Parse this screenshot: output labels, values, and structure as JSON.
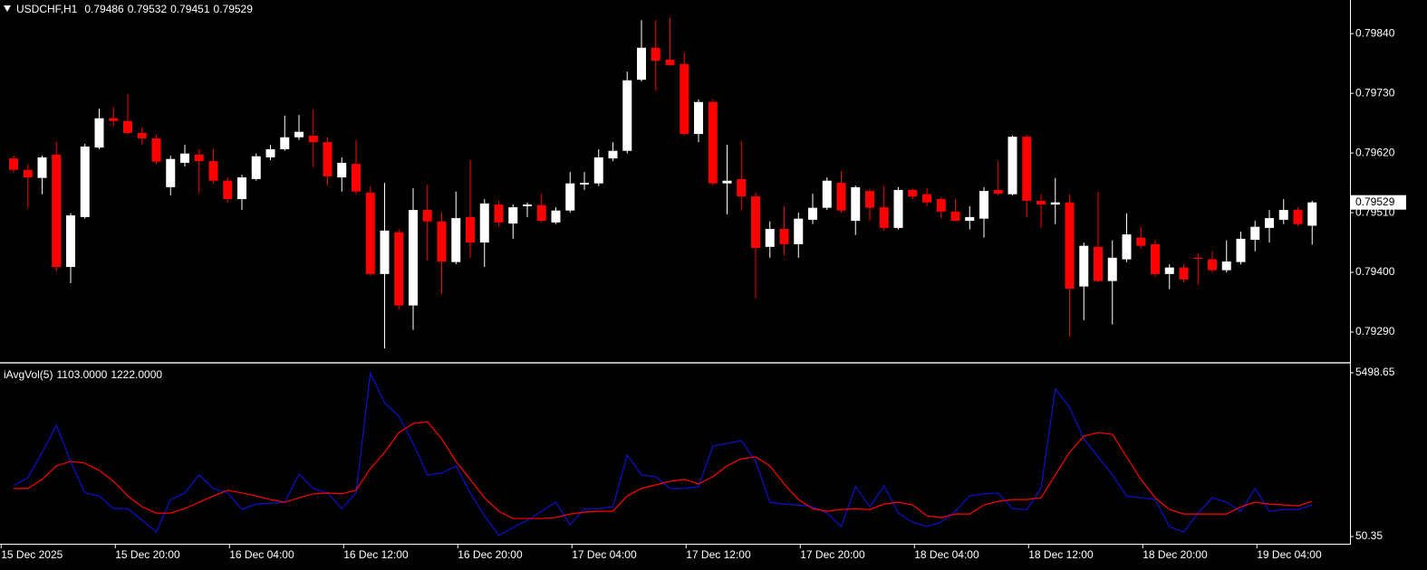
{
  "chart_data": [
    {
      "type": "candlestick",
      "symbol": "USDCHF,H1",
      "up_color": "#ffffff",
      "down_color": "#ff0000",
      "ylim": [
        0.79235,
        0.79902
      ],
      "yticks": [
        {
          "value": 0.7984,
          "label": "0.79840"
        },
        {
          "value": 0.7973,
          "label": "0.79730"
        },
        {
          "value": 0.7962,
          "label": "0.79620"
        },
        {
          "value": 0.7951,
          "label": "0.79510"
        },
        {
          "value": 0.794,
          "label": "0.79400"
        },
        {
          "value": 0.7929,
          "label": "0.79290"
        }
      ],
      "candles": [
        [
          0.7961,
          0.79615,
          0.79585,
          0.79589
        ],
        [
          0.79589,
          0.79599,
          0.79519,
          0.79575
        ],
        [
          0.79574,
          0.79615,
          0.79544,
          0.79612
        ],
        [
          0.79617,
          0.7964,
          0.79402,
          0.7941
        ],
        [
          0.7941,
          0.79509,
          0.7938,
          0.79505
        ],
        [
          0.79502,
          0.79637,
          0.79499,
          0.79632
        ],
        [
          0.7963,
          0.79702,
          0.79627,
          0.79684
        ],
        [
          0.79684,
          0.79705,
          0.79669,
          0.79679
        ],
        [
          0.79679,
          0.79729,
          0.79654,
          0.79657
        ],
        [
          0.79657,
          0.79667,
          0.79635,
          0.79647
        ],
        [
          0.79647,
          0.79652,
          0.796,
          0.79604
        ],
        [
          0.79557,
          0.79615,
          0.79542,
          0.79609
        ],
        [
          0.79602,
          0.79635,
          0.79595,
          0.79619
        ],
        [
          0.79617,
          0.79627,
          0.79547,
          0.79605
        ],
        [
          0.79605,
          0.79627,
          0.79565,
          0.79569
        ],
        [
          0.79569,
          0.79575,
          0.79529,
          0.79535
        ],
        [
          0.79535,
          0.7958,
          0.79515,
          0.79575
        ],
        [
          0.79572,
          0.79619,
          0.79569,
          0.79614
        ],
        [
          0.79612,
          0.79635,
          0.79607,
          0.79627
        ],
        [
          0.79627,
          0.79689,
          0.79624,
          0.79649
        ],
        [
          0.79649,
          0.7969,
          0.79644,
          0.79659
        ],
        [
          0.79652,
          0.797,
          0.79594,
          0.7964
        ],
        [
          0.7964,
          0.79649,
          0.7956,
          0.79577
        ],
        [
          0.79575,
          0.79612,
          0.79549,
          0.79602
        ],
        [
          0.796,
          0.79644,
          0.79545,
          0.79549
        ],
        [
          0.79547,
          0.79559,
          0.79394,
          0.79397
        ],
        [
          0.79397,
          0.79565,
          0.7926,
          0.79477
        ],
        [
          0.79474,
          0.7948,
          0.79332,
          0.79339
        ],
        [
          0.79339,
          0.79555,
          0.79294,
          0.79515
        ],
        [
          0.79515,
          0.79562,
          0.79422,
          0.79494
        ],
        [
          0.79494,
          0.7951,
          0.7936,
          0.7942
        ],
        [
          0.79419,
          0.79549,
          0.79415,
          0.795
        ],
        [
          0.79502,
          0.79607,
          0.79427,
          0.79455
        ],
        [
          0.79455,
          0.79535,
          0.7941,
          0.79527
        ],
        [
          0.79525,
          0.79532,
          0.79485,
          0.79492
        ],
        [
          0.7949,
          0.79525,
          0.79462,
          0.7952
        ],
        [
          0.79522,
          0.79529,
          0.79502,
          0.79525
        ],
        [
          0.79524,
          0.79545,
          0.79492,
          0.79495
        ],
        [
          0.79492,
          0.7952,
          0.79489,
          0.79514
        ],
        [
          0.79514,
          0.79585,
          0.7951,
          0.79564
        ],
        [
          0.79562,
          0.79585,
          0.79552,
          0.79565
        ],
        [
          0.79564,
          0.79627,
          0.79559,
          0.79612
        ],
        [
          0.7961,
          0.7964,
          0.79605,
          0.79624
        ],
        [
          0.79624,
          0.7977,
          0.79619,
          0.79754
        ],
        [
          0.79755,
          0.79865,
          0.79752,
          0.79814
        ],
        [
          0.79814,
          0.79865,
          0.79735,
          0.7979
        ],
        [
          0.79792,
          0.7987,
          0.7978,
          0.79782
        ],
        [
          0.79784,
          0.79805,
          0.79652,
          0.79655
        ],
        [
          0.79655,
          0.79719,
          0.7964,
          0.79714
        ],
        [
          0.79714,
          0.79719,
          0.7956,
          0.79564
        ],
        [
          0.79564,
          0.79635,
          0.79507,
          0.79569
        ],
        [
          0.79572,
          0.79642,
          0.79514,
          0.7954
        ],
        [
          0.7954,
          0.79547,
          0.79352,
          0.79445
        ],
        [
          0.79447,
          0.79494,
          0.79427,
          0.7948
        ],
        [
          0.7948,
          0.79522,
          0.79432,
          0.79452
        ],
        [
          0.79452,
          0.7951,
          0.79427,
          0.79499
        ],
        [
          0.79497,
          0.79545,
          0.79489,
          0.79519
        ],
        [
          0.79519,
          0.79575,
          0.79515,
          0.79569
        ],
        [
          0.79565,
          0.79587,
          0.7951,
          0.79514
        ],
        [
          0.79495,
          0.7956,
          0.79469,
          0.79557
        ],
        [
          0.7955,
          0.79554,
          0.79494,
          0.79519
        ],
        [
          0.7952,
          0.7956,
          0.79477,
          0.79482
        ],
        [
          0.79482,
          0.79557,
          0.79479,
          0.79552
        ],
        [
          0.79552,
          0.79554,
          0.79535,
          0.7954
        ],
        [
          0.79544,
          0.79555,
          0.79522,
          0.79529
        ],
        [
          0.79535,
          0.79539,
          0.79499,
          0.79512
        ],
        [
          0.79512,
          0.79535,
          0.79494,
          0.79495
        ],
        [
          0.79495,
          0.79522,
          0.79479,
          0.79502
        ],
        [
          0.79499,
          0.79557,
          0.79464,
          0.7955
        ],
        [
          0.79552,
          0.79605,
          0.79542,
          0.79545
        ],
        [
          0.79544,
          0.79652,
          0.79542,
          0.7965
        ],
        [
          0.7965,
          0.79654,
          0.79502,
          0.79532
        ],
        [
          0.79532,
          0.79544,
          0.79482,
          0.79525
        ],
        [
          0.79525,
          0.79574,
          0.79489,
          0.79529
        ],
        [
          0.79529,
          0.79544,
          0.79282,
          0.7937
        ],
        [
          0.79374,
          0.79455,
          0.79312,
          0.79449
        ],
        [
          0.79447,
          0.79549,
          0.79382,
          0.79384
        ],
        [
          0.79384,
          0.79459,
          0.79304,
          0.79427
        ],
        [
          0.79424,
          0.79509,
          0.79419,
          0.7947
        ],
        [
          0.79464,
          0.79484,
          0.79444,
          0.79449
        ],
        [
          0.79452,
          0.7946,
          0.79392,
          0.79397
        ],
        [
          0.79397,
          0.79415,
          0.79369,
          0.79409
        ],
        [
          0.79409,
          0.79414,
          0.79382,
          0.79387
        ],
        [
          0.79427,
          0.79435,
          0.79377,
          0.79425
        ],
        [
          0.79424,
          0.79439,
          0.794,
          0.79404
        ],
        [
          0.79404,
          0.79459,
          0.794,
          0.7942
        ],
        [
          0.79419,
          0.79475,
          0.79415,
          0.79462
        ],
        [
          0.7946,
          0.79495,
          0.79439,
          0.79484
        ],
        [
          0.79482,
          0.79515,
          0.79455,
          0.795
        ],
        [
          0.79497,
          0.79535,
          0.79489,
          0.79515
        ],
        [
          0.79515,
          0.7952,
          0.79485,
          0.79489
        ],
        [
          0.79486,
          0.79532,
          0.79451,
          0.79529
        ]
      ]
    },
    {
      "type": "line",
      "title": "iAvgVol(5)",
      "value_labels": [
        "1103.0000",
        "1222.0000"
      ],
      "ylim": [
        50.35,
        5498.65
      ],
      "yticks": [
        5498.65,
        50.35
      ],
      "xticks": [
        {
          "value": -1,
          "label": "15 Dec 2025"
        },
        {
          "value": 7,
          "label": "15 Dec 20:00"
        },
        {
          "value": 15,
          "label": "16 Dec 04:00"
        },
        {
          "value": 23,
          "label": "16 Dec 12:00"
        },
        {
          "value": 31,
          "label": "16 Dec 20:00"
        },
        {
          "value": 39,
          "label": "17 Dec 04:00"
        },
        {
          "value": 47,
          "label": "17 Dec 12:00"
        },
        {
          "value": 55,
          "label": "17 Dec 20:00"
        },
        {
          "value": 63,
          "label": "18 Dec 04:00"
        },
        {
          "value": 71,
          "label": "18 Dec 12:00"
        },
        {
          "value": 79,
          "label": "18 Dec 20:00"
        },
        {
          "value": 87,
          "label": "19 Dec 04:00"
        }
      ],
      "series": [
        {
          "color": "#1010d0",
          "values": [
            1740,
            2010,
            2850,
            3750,
            2550,
            1500,
            1400,
            980,
            980,
            590,
            200,
            1280,
            1500,
            2100,
            1650,
            1500,
            950,
            1130,
            1160,
            1190,
            2130,
            1650,
            1500,
            980,
            1500,
            5490,
            4500,
            4050,
            3150,
            2100,
            2160,
            2400,
            1500,
            740,
            80,
            350,
            590,
            890,
            1190,
            440,
            980,
            980,
            1040,
            2760,
            2100,
            2040,
            1650,
            1650,
            1710,
            3060,
            3150,
            3240,
            2550,
            1190,
            1130,
            1100,
            1040,
            830,
            380,
            1710,
            1040,
            1740,
            830,
            530,
            380,
            530,
            890,
            1400,
            1470,
            1500,
            980,
            950,
            1650,
            4960,
            4350,
            3300,
            2700,
            2100,
            1400,
            1340,
            1280,
            380,
            200,
            830,
            1340,
            1190,
            890,
            1650,
            890,
            950,
            950,
            1103
          ]
        },
        {
          "color": "#ff0000",
          "values": [
            1650,
            1650,
            1950,
            2400,
            2550,
            2490,
            2250,
            1890,
            1400,
            1040,
            830,
            830,
            980,
            1190,
            1400,
            1590,
            1500,
            1400,
            1280,
            1190,
            1340,
            1470,
            1500,
            1470,
            1590,
            2310,
            2850,
            3510,
            3810,
            3870,
            3300,
            2550,
            1950,
            1340,
            890,
            650,
            650,
            650,
            680,
            800,
            860,
            890,
            890,
            1400,
            1650,
            1770,
            1890,
            1950,
            1800,
            2040,
            2400,
            2640,
            2700,
            2400,
            1800,
            1280,
            980,
            890,
            950,
            980,
            950,
            1130,
            1190,
            1100,
            740,
            680,
            800,
            800,
            1100,
            1220,
            1280,
            1280,
            1340,
            2100,
            2850,
            3390,
            3510,
            3450,
            2700,
            1950,
            1340,
            950,
            800,
            800,
            800,
            800,
            1040,
            1190,
            1130,
            1100,
            1070,
            1222
          ]
        }
      ]
    }
  ]
}
